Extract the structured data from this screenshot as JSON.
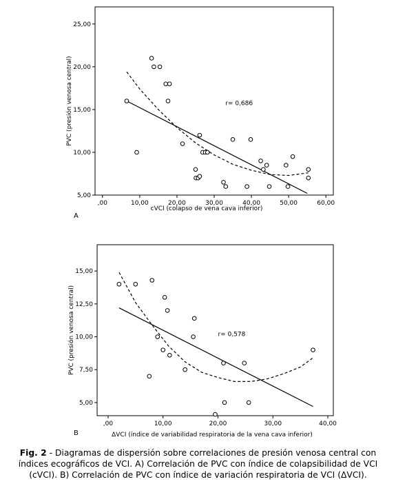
{
  "chart_data": [
    {
      "type": "scatter",
      "panel_label": "A",
      "xlabel": "cVCI (colapso de vena cava inferior)",
      "ylabel": "PVC (presión venosa central)",
      "xlim": [
        -2,
        62
      ],
      "ylim": [
        5,
        27
      ],
      "xticks": [
        ",00",
        "10,00",
        "20,00",
        "30,00",
        "40,00",
        "50,00",
        "60,00"
      ],
      "xtick_values": [
        0,
        10,
        20,
        30,
        40,
        50,
        60
      ],
      "yticks": [
        "5,00",
        "10,00",
        "15,00",
        "20,00",
        "25,00"
      ],
      "ytick_values": [
        5,
        10,
        15,
        20,
        25
      ],
      "annotation": "r= 0,686",
      "annotation_pos": [
        33,
        15.5
      ],
      "points": [
        [
          6.5,
          16
        ],
        [
          9.2,
          10
        ],
        [
          13.2,
          21
        ],
        [
          13.8,
          20
        ],
        [
          15.4,
          20
        ],
        [
          17,
          18
        ],
        [
          18,
          18
        ],
        [
          17.6,
          16
        ],
        [
          21.5,
          11
        ],
        [
          25,
          8
        ],
        [
          25.1,
          7
        ],
        [
          25.7,
          7
        ],
        [
          26.1,
          7.2
        ],
        [
          26.1,
          12
        ],
        [
          26.9,
          10
        ],
        [
          27.6,
          10
        ],
        [
          28.2,
          10
        ],
        [
          32.5,
          6.5
        ],
        [
          33.1,
          6
        ],
        [
          35,
          11.5
        ],
        [
          38.8,
          6
        ],
        [
          39.8,
          11.5
        ],
        [
          42.5,
          9
        ],
        [
          43.2,
          8
        ],
        [
          44.1,
          8.5
        ],
        [
          44.8,
          6
        ],
        [
          49.3,
          8.5
        ],
        [
          49.8,
          6
        ],
        [
          51.1,
          9.5
        ],
        [
          55.3,
          8
        ],
        [
          55.3,
          7
        ]
      ],
      "linear_fit": [
        [
          6.5,
          16
        ],
        [
          55,
          5.2
        ]
      ],
      "curve_fit": [
        [
          6.5,
          19.4
        ],
        [
          10,
          17.4
        ],
        [
          15,
          15
        ],
        [
          20,
          12.9
        ],
        [
          25,
          11.1
        ],
        [
          30,
          9.7
        ],
        [
          35,
          8.6
        ],
        [
          40,
          7.9
        ],
        [
          45,
          7.4
        ],
        [
          50,
          7.3
        ],
        [
          55.3,
          7.6
        ]
      ]
    },
    {
      "type": "scatter",
      "panel_label": "B",
      "xlabel": "ΔVCI (índice de variabilidad respiratoria de la vena cava inferior)",
      "ylabel": "PVC (presión venosa central)",
      "xlim": [
        -2,
        41
      ],
      "ylim": [
        4,
        17
      ],
      "xticks": [
        ",00",
        "10,00",
        "20,00",
        "30,00",
        "40,00"
      ],
      "xtick_values": [
        0,
        10,
        20,
        30,
        40
      ],
      "yticks": [
        "5,00",
        "7,50",
        "10,00",
        "12,50",
        "15,00"
      ],
      "ytick_values": [
        5,
        7.5,
        10,
        12.5,
        15
      ],
      "annotation": "r= 0,578",
      "annotation_pos": [
        20,
        10.05
      ],
      "points": [
        [
          2,
          14
        ],
        [
          5,
          14
        ],
        [
          7.5,
          7
        ],
        [
          8,
          14.3
        ],
        [
          9,
          10
        ],
        [
          10,
          9
        ],
        [
          10.3,
          13
        ],
        [
          10.8,
          12
        ],
        [
          11.2,
          8.6
        ],
        [
          14,
          7.5
        ],
        [
          15.5,
          10
        ],
        [
          15.7,
          11.4
        ],
        [
          19.5,
          4.1
        ],
        [
          21,
          8
        ],
        [
          21.2,
          5
        ],
        [
          24.8,
          8
        ],
        [
          25.6,
          5
        ],
        [
          37.3,
          9
        ]
      ],
      "linear_fit": [
        [
          2,
          12.2
        ],
        [
          37.3,
          4.7
        ]
      ],
      "curve_fit": [
        [
          2,
          14.9
        ],
        [
          5,
          12.6
        ],
        [
          8,
          10.9
        ],
        [
          11,
          9.3
        ],
        [
          14,
          8.1
        ],
        [
          17,
          7.3
        ],
        [
          20,
          6.9
        ],
        [
          23,
          6.6
        ],
        [
          26,
          6.6
        ],
        [
          29,
          6.8
        ],
        [
          32,
          7.2
        ],
        [
          35,
          7.7
        ],
        [
          37.3,
          8.4
        ]
      ]
    }
  ],
  "caption": {
    "fig_label": "Fig. 2",
    "text": " - Diagramas de dispersión sobre correlaciones de presión venosa central con índices ecográficos de VCI. A) Correlación de PVC con índice de colapsibilidad de VCI (cVCI). B) Correlación de PVC con índice de variación respiratoria de VCI (ΔVCI)."
  }
}
